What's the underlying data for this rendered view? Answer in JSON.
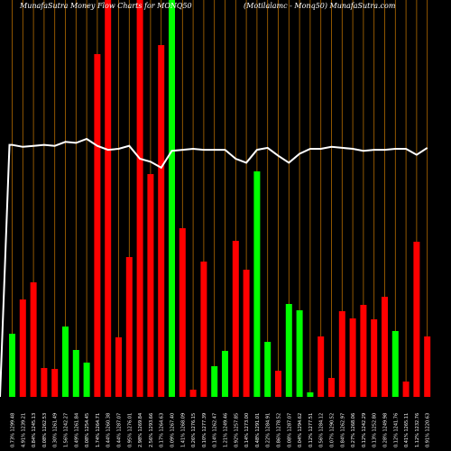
{
  "header": {
    "left": "MunafaSutra  Money Flow  Charts for MONQ50",
    "right": "(Motilalamc -  Monq50) MunafaSutra.com"
  },
  "colors": {
    "background": "#000000",
    "grid": "#b36b00",
    "up": "#00ff00",
    "down": "#ff0000",
    "line": "#ffffff",
    "label": "#ffffff"
  },
  "chart_data": {
    "type": "bar",
    "title": "MunafaSutra  Money Flow  Charts for MONQ50",
    "bars": [
      {
        "label": "0.73% 1299.48",
        "direction": "up",
        "value": 70
      },
      {
        "label": "4.91% 1239.21",
        "direction": "down",
        "value": 108
      },
      {
        "label": "0.84% 1245.13",
        "direction": "down",
        "value": 127
      },
      {
        "label": "0.08% 1262.53",
        "direction": "down",
        "value": 32
      },
      {
        "label": "0.30% 1261.49",
        "direction": "down",
        "value": 31
      },
      {
        "label": "1.56% 1242.27",
        "direction": "up",
        "value": 78
      },
      {
        "label": "0.49% 1261.84",
        "direction": "up",
        "value": 52
      },
      {
        "label": "0.08% 1254.45",
        "direction": "up",
        "value": 38
      },
      {
        "label": "1.74% 1264.71",
        "direction": "down",
        "value": 380
      },
      {
        "label": "0.44% 1260.38",
        "direction": "down",
        "value": 440
      },
      {
        "label": "0.44% 1287.07",
        "direction": "down",
        "value": 66
      },
      {
        "label": "0.95% 1276.01",
        "direction": "down",
        "value": 155
      },
      {
        "label": "2.98% 1269.84",
        "direction": "down",
        "value": 440
      },
      {
        "label": "2.56% 1293.66",
        "direction": "down",
        "value": 247
      },
      {
        "label": "0.17% 1264.63",
        "direction": "down",
        "value": 390
      },
      {
        "label": "0.09% 1267.40",
        "direction": "up",
        "value": 440
      },
      {
        "label": "1.41% 1268.09",
        "direction": "down",
        "value": 187
      },
      {
        "label": "0.26% 1276.15",
        "direction": "down",
        "value": 8
      },
      {
        "label": "0.10% 1277.39",
        "direction": "down",
        "value": 150
      },
      {
        "label": "0.14% 1262.47",
        "direction": "up",
        "value": 34
      },
      {
        "label": "1.21% 1249.46",
        "direction": "up",
        "value": 51
      },
      {
        "label": "0.92% 1257.85",
        "direction": "down",
        "value": 173
      },
      {
        "label": "0.14% 1273.00",
        "direction": "down",
        "value": 141
      },
      {
        "label": "0.48% 1291.01",
        "direction": "up",
        "value": 250
      },
      {
        "label": "0.22% 1284.91",
        "direction": "up",
        "value": 61
      },
      {
        "label": "0.86% 1278.52",
        "direction": "down",
        "value": 29
      },
      {
        "label": "0.08% 1287.07",
        "direction": "up",
        "value": 103
      },
      {
        "label": "0.04% 1294.62",
        "direction": "up",
        "value": 96
      },
      {
        "label": "0.12% 1277.51",
        "direction": "up",
        "value": 5
      },
      {
        "label": "0.56% 1284.12",
        "direction": "down",
        "value": 67
      },
      {
        "label": "0.07% 1290.52",
        "direction": "down",
        "value": 21
      },
      {
        "label": "0.84% 1262.97",
        "direction": "down",
        "value": 95
      },
      {
        "label": "0.27% 1268.06",
        "direction": "down",
        "value": 87
      },
      {
        "label": "0.12% 1242.29",
        "direction": "down",
        "value": 102
      },
      {
        "label": "0.13% 1252.80",
        "direction": "down",
        "value": 86
      },
      {
        "label": "0.28% 1249.98",
        "direction": "down",
        "value": 111
      },
      {
        "label": "0.12% 1241.76",
        "direction": "up",
        "value": 73
      },
      {
        "label": "0.41% 1265.11",
        "direction": "down",
        "value": 17
      },
      {
        "label": "1.12% 1232.76",
        "direction": "down",
        "value": 172
      },
      {
        "label": "0.91% 1220.63",
        "direction": "down",
        "value": 67
      }
    ],
    "price_line": [
      254,
      252,
      253,
      254,
      253,
      257,
      256,
      260,
      253,
      249,
      250,
      253,
      240,
      237,
      231,
      248,
      249,
      250,
      249,
      249,
      249,
      240,
      236,
      249,
      251,
      243,
      236,
      245,
      250,
      250,
      252,
      251,
      250,
      248,
      249,
      249,
      250,
      250,
      244,
      251
    ],
    "line_range": [
      0,
      400
    ],
    "grid": true
  }
}
